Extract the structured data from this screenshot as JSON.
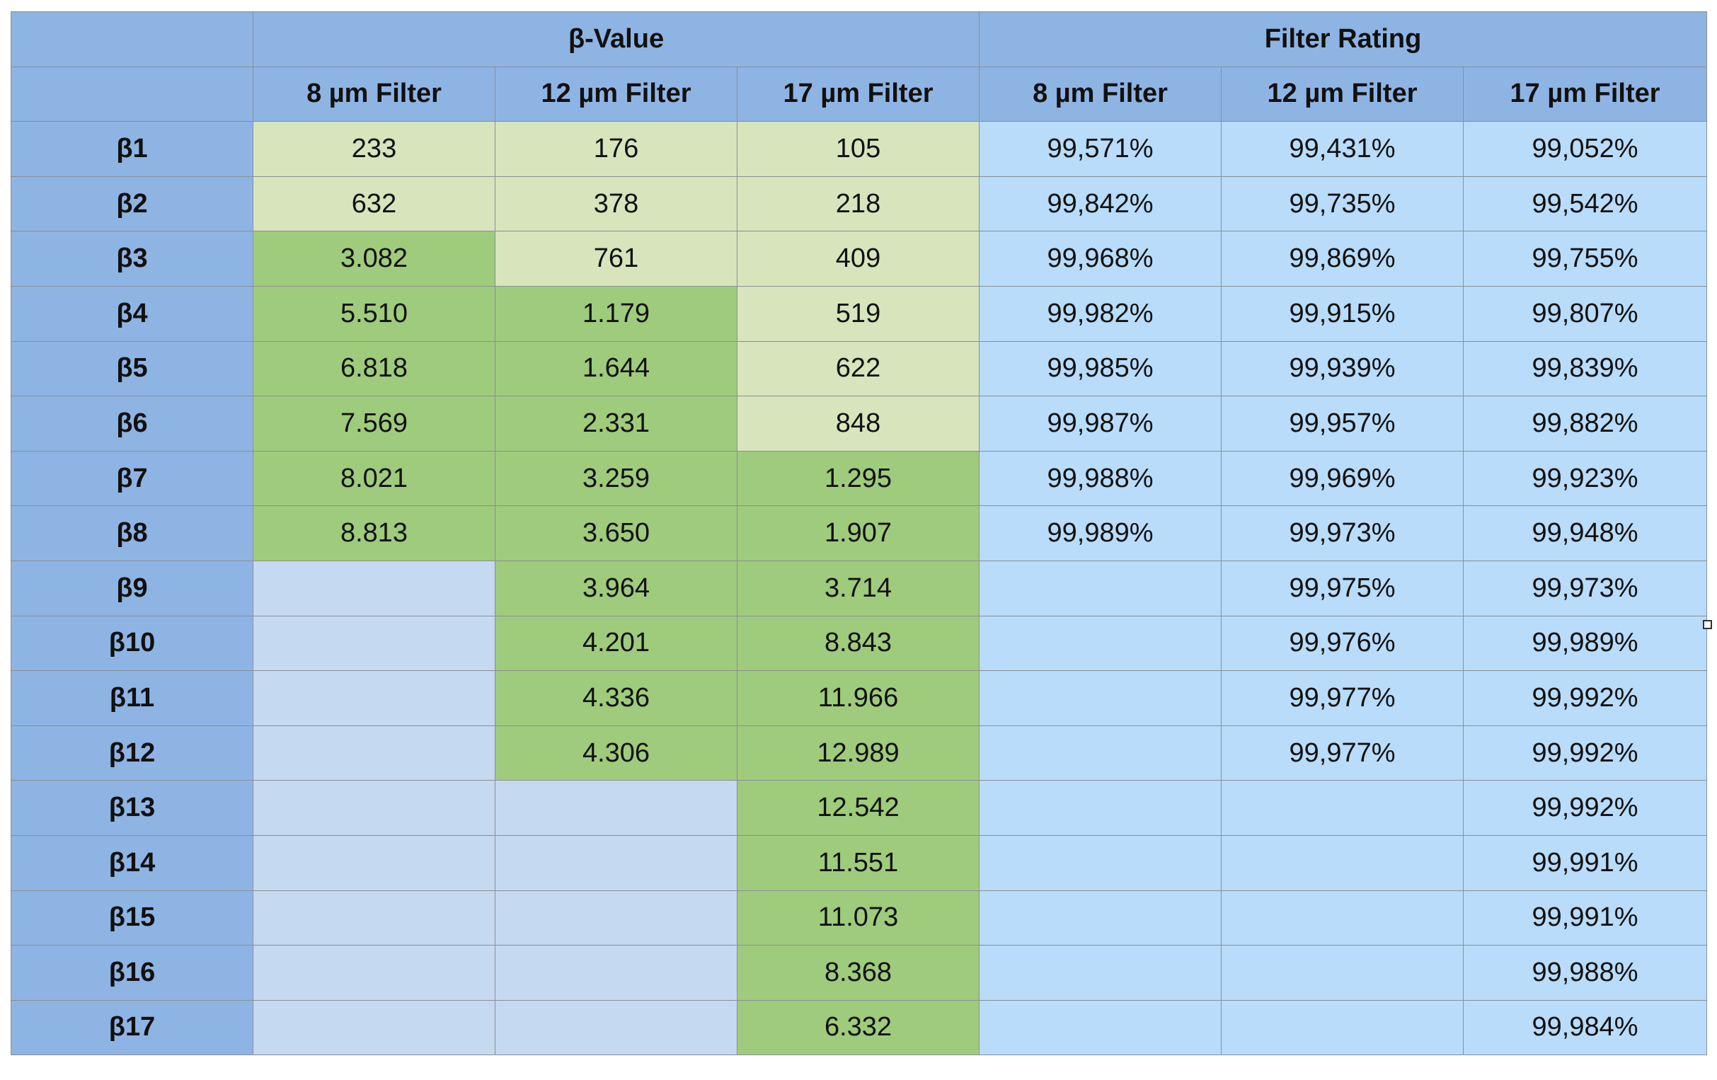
{
  "table": {
    "group_headers": {
      "beta_value": "β-Value",
      "filter_rating": "Filter Rating"
    },
    "columns": {
      "beta": [
        "8 µm Filter",
        "12 µm Filter",
        "17 µm Filter"
      ],
      "rating": [
        "8 µm Filter",
        "12 µm Filter",
        "17 µm Filter"
      ]
    },
    "rows": [
      {
        "label": "β1",
        "beta": [
          "233",
          "176",
          "105"
        ],
        "shade": [
          "light",
          "light",
          "light"
        ],
        "rating": [
          "99,571%",
          "99,431%",
          "99,052%"
        ]
      },
      {
        "label": "β2",
        "beta": [
          "632",
          "378",
          "218"
        ],
        "shade": [
          "light",
          "light",
          "light"
        ],
        "rating": [
          "99,842%",
          "99,735%",
          "99,542%"
        ]
      },
      {
        "label": "β3",
        "beta": [
          "3.082",
          "761",
          "409"
        ],
        "shade": [
          "dark",
          "light",
          "light"
        ],
        "rating": [
          "99,968%",
          "99,869%",
          "99,755%"
        ]
      },
      {
        "label": "β4",
        "beta": [
          "5.510",
          "1.179",
          "519"
        ],
        "shade": [
          "dark",
          "dark",
          "light"
        ],
        "rating": [
          "99,982%",
          "99,915%",
          "99,807%"
        ]
      },
      {
        "label": "β5",
        "beta": [
          "6.818",
          "1.644",
          "622"
        ],
        "shade": [
          "dark",
          "dark",
          "light"
        ],
        "rating": [
          "99,985%",
          "99,939%",
          "99,839%"
        ]
      },
      {
        "label": "β6",
        "beta": [
          "7.569",
          "2.331",
          "848"
        ],
        "shade": [
          "dark",
          "dark",
          "light"
        ],
        "rating": [
          "99,987%",
          "99,957%",
          "99,882%"
        ]
      },
      {
        "label": "β7",
        "beta": [
          "8.021",
          "3.259",
          "1.295"
        ],
        "shade": [
          "dark",
          "dark",
          "dark"
        ],
        "rating": [
          "99,988%",
          "99,969%",
          "99,923%"
        ]
      },
      {
        "label": "β8",
        "beta": [
          "8.813",
          "3.650",
          "1.907"
        ],
        "shade": [
          "dark",
          "dark",
          "dark"
        ],
        "rating": [
          "99,989%",
          "99,973%",
          "99,948%"
        ]
      },
      {
        "label": "β9",
        "beta": [
          "",
          "3.964",
          "3.714"
        ],
        "shade": [
          "empty",
          "dark",
          "dark"
        ],
        "rating": [
          "",
          "99,975%",
          "99,973%"
        ]
      },
      {
        "label": "β10",
        "beta": [
          "",
          "4.201",
          "8.843"
        ],
        "shade": [
          "empty",
          "dark",
          "dark"
        ],
        "rating": [
          "",
          "99,976%",
          "99,989%"
        ]
      },
      {
        "label": "β11",
        "beta": [
          "",
          "4.336",
          "11.966"
        ],
        "shade": [
          "empty",
          "dark",
          "dark"
        ],
        "rating": [
          "",
          "99,977%",
          "99,992%"
        ]
      },
      {
        "label": "β12",
        "beta": [
          "",
          "4.306",
          "12.989"
        ],
        "shade": [
          "empty",
          "dark",
          "dark"
        ],
        "rating": [
          "",
          "99,977%",
          "99,992%"
        ]
      },
      {
        "label": "β13",
        "beta": [
          "",
          "",
          "12.542"
        ],
        "shade": [
          "empty",
          "empty",
          "dark"
        ],
        "rating": [
          "",
          "",
          "99,992%"
        ]
      },
      {
        "label": "β14",
        "beta": [
          "",
          "",
          "11.551"
        ],
        "shade": [
          "empty",
          "empty",
          "dark"
        ],
        "rating": [
          "",
          "",
          "99,991%"
        ]
      },
      {
        "label": "β15",
        "beta": [
          "",
          "",
          "11.073"
        ],
        "shade": [
          "empty",
          "empty",
          "dark"
        ],
        "rating": [
          "",
          "",
          "99,991%"
        ]
      },
      {
        "label": "β16",
        "beta": [
          "",
          "",
          "8.368"
        ],
        "shade": [
          "empty",
          "empty",
          "dark"
        ],
        "rating": [
          "",
          "",
          "99,988%"
        ]
      },
      {
        "label": "β17",
        "beta": [
          "",
          "",
          "6.332"
        ],
        "shade": [
          "empty",
          "empty",
          "dark"
        ],
        "rating": [
          "",
          "",
          "99,984%"
        ]
      }
    ]
  },
  "colors": {
    "header": "#8eb4e3",
    "beta_light_green": "#d8e4bc",
    "beta_dark_green": "#9fcb7c",
    "beta_empty": "#c5d9f1",
    "rating_cell": "#b8dcfa",
    "grid_line": "#8a8f96"
  }
}
